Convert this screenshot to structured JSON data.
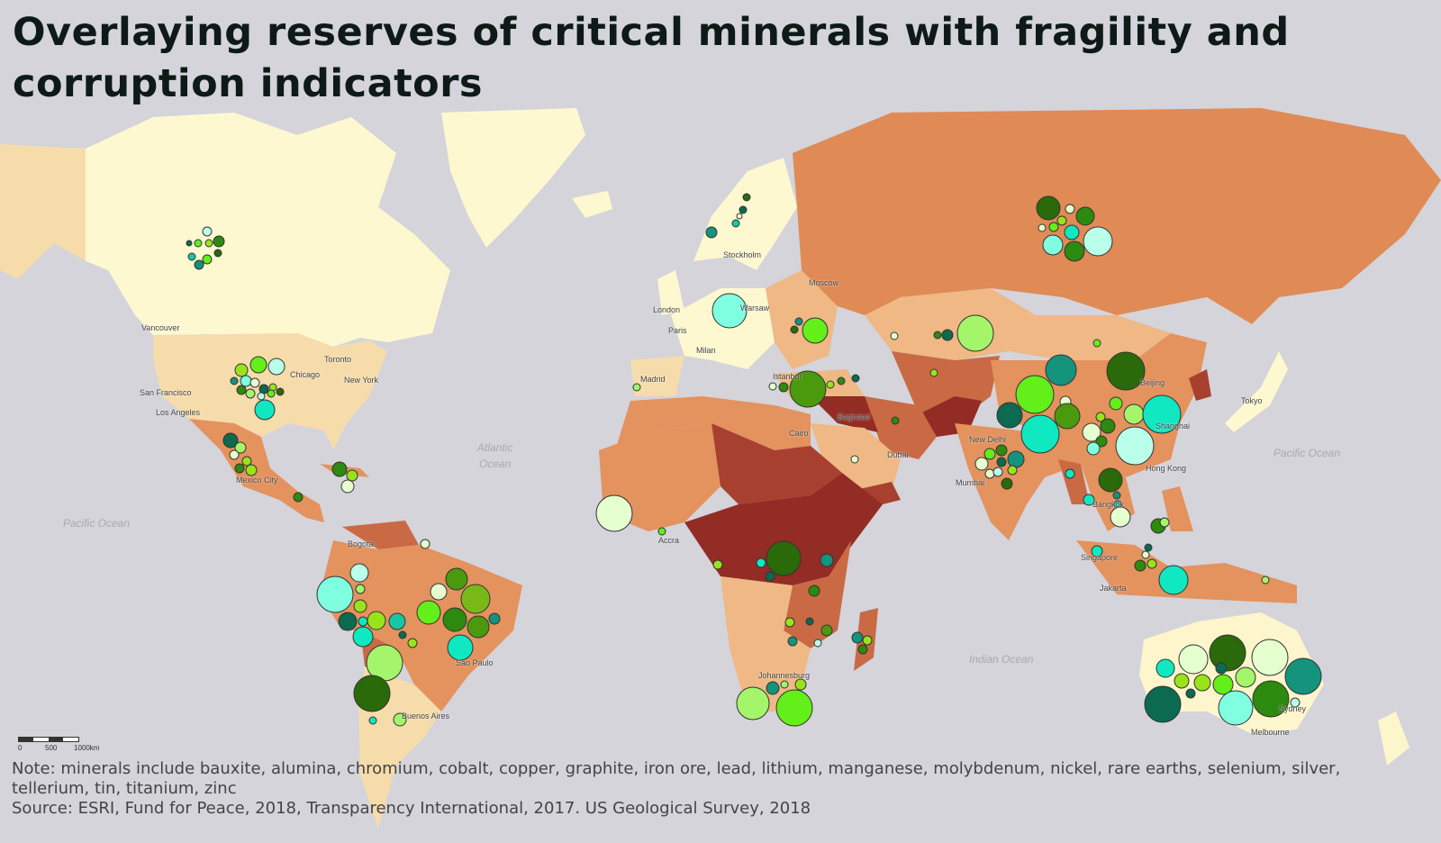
{
  "title": "Overlaying reserves of critical minerals with fragility and corruption indicators",
  "cities": [
    "Stockholm",
    "Moscow",
    "London",
    "Warsaw",
    "Paris",
    "Milan",
    "Madrid",
    "Istanbul",
    "Baghdad",
    "Cairo",
    "Dubai",
    "Vancouver",
    "Toronto",
    "Chicago",
    "New York",
    "San Francisco",
    "Los Angeles",
    "Mexico City",
    "Bogota",
    "Sao Paulo",
    "Buenos Aires",
    "Accra",
    "Johannesburg",
    "New Delhi",
    "Mumbai",
    "Beijing",
    "Shanghai",
    "Tokyo",
    "Hong Kong",
    "Bangkok",
    "Singapore",
    "Jakarta",
    "Sydney",
    "Melbourne"
  ],
  "oceans": {
    "atlantic": "Atlantic\nOcean",
    "pacific_west": "Pacific Ocean",
    "pacific_east": "Pacific Ocean",
    "indian": "Indian Ocean"
  },
  "scale": {
    "zero": "0",
    "mid": "500",
    "end": "1000km"
  },
  "note": "Note: minerals include bauxite, alumina, chromium, cobalt, copper, graphite, iron ore, lead, lithium, manganese, molybdenum, nickel, rare earths, selenium, silver, tellerium, tin, titanium, zinc",
  "source": "Source: ESRI, Fund for Peace, 2018, Transparency International, 2017. US Geological Survey, 2018",
  "colors": {
    "ocean": "#d4d4da",
    "fragility_scale": [
      "#fdf8d0",
      "#f6dcaa",
      "#efb884",
      "#e4925e",
      "#c96a45",
      "#a8402f",
      "#922c24"
    ],
    "mineral_bubbles": [
      "#e6ffcf",
      "#b9ffe9",
      "#a4f56a",
      "#62ef1a",
      "#9ae31b",
      "#79b917",
      "#4b9a0e",
      "#2c8a0f",
      "#2a6a0a",
      "#18c6a6",
      "#0fe8c0",
      "#14937d",
      "#0b6a4f",
      "#7fffe0"
    ]
  }
}
